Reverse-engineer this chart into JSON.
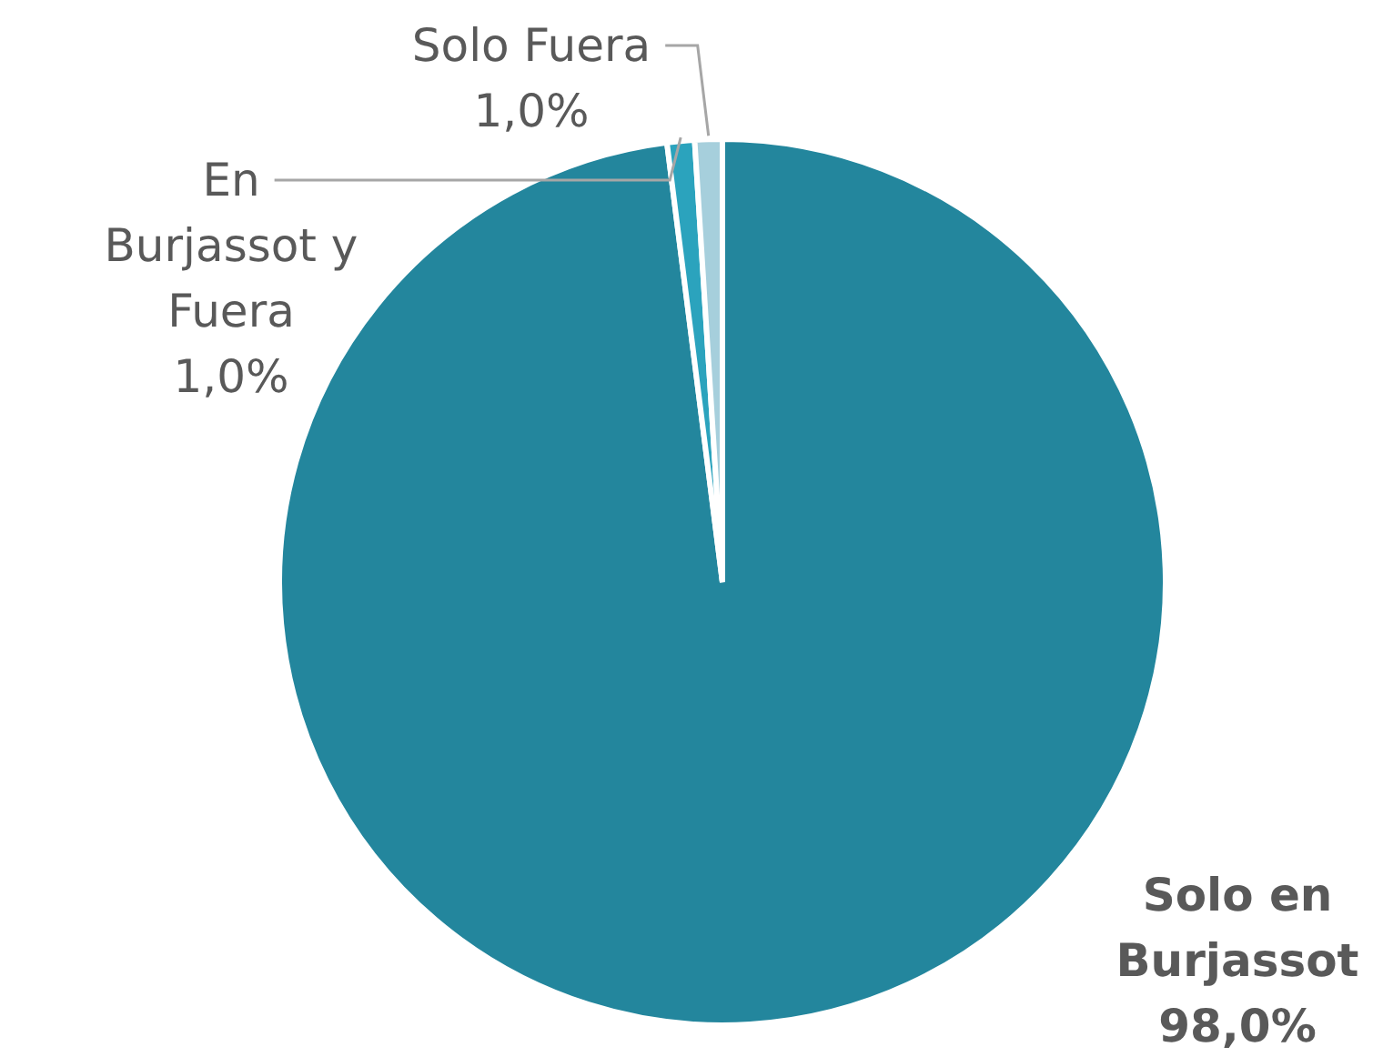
{
  "chart_data": {
    "type": "pie",
    "categories": [
      "Solo en Burjassot",
      "En Burjassot y Fuera",
      "Solo Fuera"
    ],
    "values": [
      98,
      1,
      1
    ],
    "colors": [
      "#23869d",
      "#2ba3bd",
      "#a6cfdc"
    ],
    "value_labels": [
      "98,0%",
      "1,0%",
      "1,0%"
    ]
  }
}
